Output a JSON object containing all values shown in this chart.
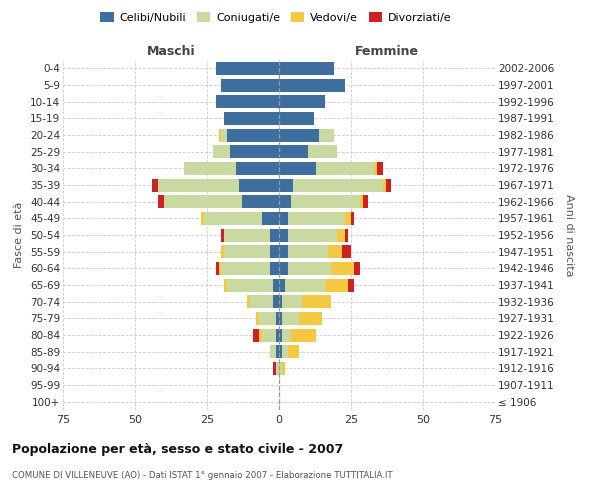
{
  "age_groups": [
    "100+",
    "95-99",
    "90-94",
    "85-89",
    "80-84",
    "75-79",
    "70-74",
    "65-69",
    "60-64",
    "55-59",
    "50-54",
    "45-49",
    "40-44",
    "35-39",
    "30-34",
    "25-29",
    "20-24",
    "15-19",
    "10-14",
    "5-9",
    "0-4"
  ],
  "birth_years": [
    "≤ 1906",
    "1907-1911",
    "1912-1916",
    "1917-1921",
    "1922-1926",
    "1927-1931",
    "1932-1936",
    "1937-1941",
    "1942-1946",
    "1947-1951",
    "1952-1956",
    "1957-1961",
    "1962-1966",
    "1967-1971",
    "1972-1976",
    "1977-1981",
    "1982-1986",
    "1987-1991",
    "1992-1996",
    "1997-2001",
    "2002-2006"
  ],
  "maschi": {
    "celibe": [
      0,
      0,
      0,
      1,
      1,
      1,
      2,
      2,
      3,
      3,
      3,
      6,
      13,
      14,
      15,
      17,
      18,
      19,
      22,
      20,
      22
    ],
    "coniugato": [
      0,
      0,
      1,
      2,
      5,
      6,
      8,
      16,
      17,
      16,
      16,
      20,
      27,
      28,
      18,
      6,
      2,
      0,
      0,
      0,
      0
    ],
    "vedovo": [
      0,
      0,
      0,
      0,
      1,
      1,
      1,
      1,
      1,
      1,
      0,
      1,
      0,
      0,
      0,
      0,
      1,
      0,
      0,
      0,
      0
    ],
    "divorziato": [
      0,
      0,
      1,
      0,
      2,
      0,
      0,
      0,
      1,
      0,
      1,
      0,
      2,
      2,
      0,
      0,
      0,
      0,
      0,
      0,
      0
    ]
  },
  "femmine": {
    "nubile": [
      0,
      0,
      0,
      1,
      1,
      1,
      1,
      2,
      3,
      3,
      3,
      3,
      4,
      5,
      13,
      10,
      14,
      12,
      16,
      23,
      19
    ],
    "coniugata": [
      0,
      0,
      1,
      2,
      3,
      6,
      7,
      14,
      15,
      14,
      17,
      20,
      24,
      31,
      20,
      10,
      5,
      0,
      0,
      0,
      0
    ],
    "vedova": [
      0,
      0,
      1,
      4,
      9,
      8,
      10,
      8,
      8,
      5,
      3,
      2,
      1,
      1,
      1,
      0,
      0,
      0,
      0,
      0,
      0
    ],
    "divorziata": [
      0,
      0,
      0,
      0,
      0,
      0,
      0,
      2,
      2,
      3,
      1,
      1,
      2,
      2,
      2,
      0,
      0,
      0,
      0,
      0,
      0
    ]
  },
  "colors": {
    "celibe_nubile": "#3d6e9e",
    "coniugato_a": "#c8d9a2",
    "vedovo_a": "#f5c842",
    "divorziato_a": "#cc2222"
  },
  "xlim": 75,
  "title": "Popolazione per età, sesso e stato civile - 2007",
  "subtitle": "COMUNE DI VILLENEUVE (AO) - Dati ISTAT 1° gennaio 2007 - Elaborazione TUTTITALIA.IT",
  "ylabel_left": "Fasce di età",
  "ylabel_right": "Anni di nascita",
  "label_maschi": "Maschi",
  "label_femmine": "Femmine",
  "legend_labels": [
    "Celibi/Nubili",
    "Coniugati/e",
    "Vedovi/e",
    "Divorziati/e"
  ]
}
